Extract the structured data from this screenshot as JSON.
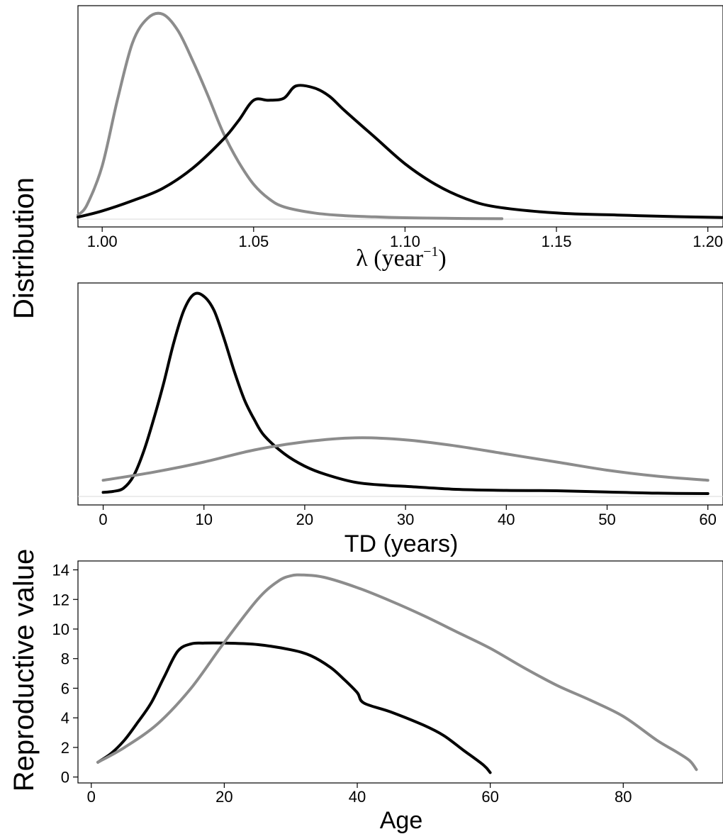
{
  "y_label_shared": "Distribution",
  "chart_data": [
    {
      "type": "line",
      "xlabel_symbol": "λ",
      "xlabel_text": " (year",
      "xlabel_sup": "−1",
      "xlabel_close": ")",
      "xlim": [
        0.992,
        1.205
      ],
      "ylim": [
        0,
        1
      ],
      "x_ticks": [
        1.0,
        1.05,
        1.1,
        1.15,
        1.2
      ],
      "x_tick_labels": [
        "1.00",
        "1.05",
        "1.10",
        "1.15",
        "1.20"
      ],
      "y_ticks_shown": false,
      "grid": false,
      "colors": {
        "gray": "#8c8c8c",
        "black": "#000000"
      },
      "series": [
        {
          "color": "#8c8c8c",
          "x": [
            0.992,
            0.995,
            1.0,
            1.005,
            1.01,
            1.015,
            1.02,
            1.025,
            1.03,
            1.035,
            1.04,
            1.045,
            1.05,
            1.055,
            1.06,
            1.07,
            1.08,
            1.09,
            1.1,
            1.11,
            1.12,
            1.132
          ],
          "y": [
            0.02,
            0.07,
            0.26,
            0.58,
            0.86,
            0.98,
            1.0,
            0.92,
            0.77,
            0.6,
            0.42,
            0.28,
            0.17,
            0.1,
            0.06,
            0.03,
            0.017,
            0.011,
            0.007,
            0.005,
            0.003,
            0.002
          ]
        },
        {
          "color": "#000000",
          "x": [
            0.992,
            1.0,
            1.01,
            1.02,
            1.03,
            1.04,
            1.045,
            1.05,
            1.055,
            1.06,
            1.064,
            1.07,
            1.075,
            1.08,
            1.09,
            1.1,
            1.11,
            1.12,
            1.13,
            1.15,
            1.17,
            1.19,
            1.205
          ],
          "y": [
            0.01,
            0.04,
            0.09,
            0.15,
            0.25,
            0.39,
            0.48,
            0.58,
            0.58,
            0.59,
            0.65,
            0.64,
            0.6,
            0.53,
            0.4,
            0.27,
            0.17,
            0.1,
            0.06,
            0.03,
            0.02,
            0.012,
            0.008
          ]
        }
      ]
    },
    {
      "type": "line",
      "xlabel": "TD (years)",
      "xlim": [
        -2.5,
        61.5
      ],
      "ylim": [
        0,
        1
      ],
      "x_ticks": [
        0,
        10,
        20,
        30,
        40,
        50,
        60
      ],
      "x_tick_labels": [
        "0",
        "10",
        "20",
        "30",
        "40",
        "50",
        "60"
      ],
      "y_ticks_shown": false,
      "grid": false,
      "series": [
        {
          "color": "#000000",
          "x": [
            0,
            1,
            2,
            3,
            4,
            5,
            6,
            7,
            8,
            9,
            10,
            11,
            12,
            13,
            14,
            15,
            16,
            18,
            20,
            22,
            25,
            28,
            30,
            35,
            40,
            45,
            50,
            55,
            60
          ],
          "y": [
            0.02,
            0.025,
            0.04,
            0.1,
            0.22,
            0.38,
            0.56,
            0.76,
            0.92,
            1.0,
            0.99,
            0.92,
            0.78,
            0.62,
            0.48,
            0.38,
            0.3,
            0.21,
            0.15,
            0.11,
            0.07,
            0.055,
            0.05,
            0.035,
            0.03,
            0.028,
            0.022,
            0.016,
            0.014
          ]
        },
        {
          "color": "#8c8c8c",
          "x": [
            0,
            5,
            10,
            15,
            20,
            25,
            30,
            35,
            40,
            45,
            50,
            55,
            60
          ],
          "y": [
            0.08,
            0.12,
            0.17,
            0.23,
            0.27,
            0.29,
            0.28,
            0.25,
            0.21,
            0.17,
            0.13,
            0.1,
            0.08
          ]
        }
      ]
    },
    {
      "type": "line",
      "xlabel": "Age",
      "ylabel": "Reproductive value",
      "xlim": [
        -2,
        95
      ],
      "ylim": [
        -0.4,
        14.6
      ],
      "x_ticks": [
        0,
        20,
        40,
        60,
        80
      ],
      "x_tick_labels": [
        "0",
        "20",
        "40",
        "60",
        "80"
      ],
      "y_ticks": [
        0,
        2,
        4,
        6,
        8,
        10,
        12,
        14
      ],
      "y_tick_labels": [
        "0",
        "2",
        "4",
        "6",
        "8",
        "10",
        "12",
        "14"
      ],
      "grid": false,
      "series": [
        {
          "color": "#000000",
          "x": [
            1,
            3,
            5,
            7,
            9,
            11,
            13,
            15,
            17,
            20,
            25,
            30,
            33,
            36,
            38,
            40,
            41,
            45,
            50,
            53,
            56,
            59,
            60
          ],
          "y": [
            1.0,
            1.6,
            2.5,
            3.7,
            5.0,
            6.8,
            8.5,
            9.0,
            9.05,
            9.05,
            8.95,
            8.6,
            8.2,
            7.4,
            6.6,
            5.7,
            5.0,
            4.4,
            3.5,
            2.8,
            1.8,
            0.8,
            0.3
          ]
        },
        {
          "color": "#8c8c8c",
          "x": [
            1,
            5,
            10,
            15,
            20,
            25,
            28,
            30,
            32,
            35,
            40,
            45,
            50,
            55,
            60,
            65,
            70,
            75,
            80,
            85,
            88,
            90,
            91
          ],
          "y": [
            1.0,
            2.0,
            3.6,
            6.0,
            9.1,
            12.0,
            13.2,
            13.6,
            13.65,
            13.5,
            12.8,
            11.9,
            10.9,
            9.8,
            8.7,
            7.4,
            6.2,
            5.2,
            4.1,
            2.5,
            1.7,
            1.1,
            0.5
          ]
        }
      ]
    }
  ]
}
